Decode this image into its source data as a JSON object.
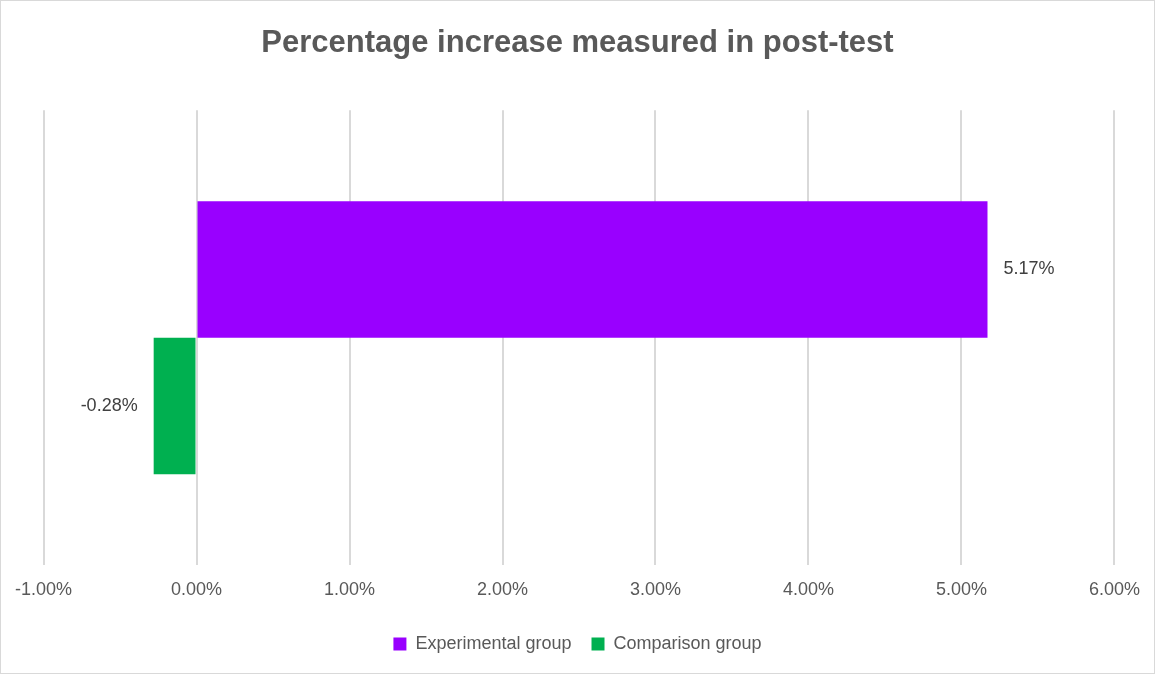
{
  "chart_data": {
    "type": "bar",
    "title": "Percentage increase measured in post-test",
    "orientation": "horizontal",
    "categories": [
      null
    ],
    "series": [
      {
        "name": "Experimental group",
        "color": "#9900ff",
        "values": [
          5.17
        ],
        "value_labels": [
          "5.17%"
        ]
      },
      {
        "name": "Comparison group",
        "color": "#00b050",
        "values": [
          -0.28
        ],
        "value_labels": [
          "-0.28%"
        ]
      }
    ],
    "xlim": [
      -1,
      6
    ],
    "xticks": [
      {
        "value": -1,
        "label": "-1.00%"
      },
      {
        "value": 0,
        "label": "0.00%"
      },
      {
        "value": 1,
        "label": "1.00%"
      },
      {
        "value": 2,
        "label": "2.00%"
      },
      {
        "value": 3,
        "label": "3.00%"
      },
      {
        "value": 4,
        "label": "4.00%"
      },
      {
        "value": 5,
        "label": "5.00%"
      },
      {
        "value": 6,
        "label": "6.00%"
      }
    ],
    "grid": "x",
    "legend": "bottom"
  }
}
